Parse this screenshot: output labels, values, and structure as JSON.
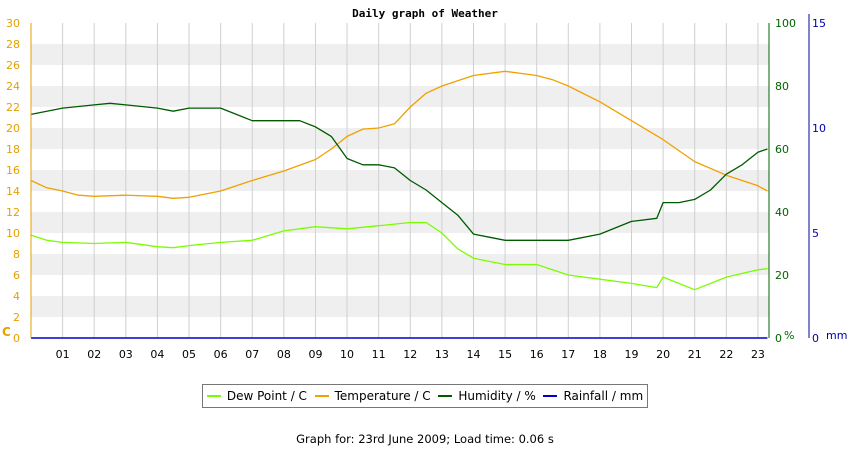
{
  "chart_data": {
    "type": "line",
    "title": "Daily graph of Weather",
    "x_tick_labels": [
      "01",
      "02",
      "03",
      "04",
      "05",
      "06",
      "07",
      "08",
      "09",
      "10",
      "11",
      "12",
      "13",
      "14",
      "15",
      "16",
      "17",
      "18",
      "19",
      "20",
      "21",
      "22",
      "23"
    ],
    "left_axis": {
      "unit_label": "C",
      "ylim": [
        0,
        30
      ],
      "tick_labels": [
        "0",
        "2",
        "4",
        "6",
        "8",
        "10",
        "12",
        "14",
        "16",
        "18",
        "20",
        "22",
        "24",
        "26",
        "28",
        "30"
      ],
      "color": "#e5a000"
    },
    "right_axis_1": {
      "unit_label": "%",
      "ylim": [
        0,
        100
      ],
      "tick_labels": [
        "0",
        "20",
        "40",
        "60",
        "80",
        "100"
      ],
      "color": "#006400"
    },
    "right_axis_2": {
      "unit_label": "mm",
      "ylim": [
        0,
        15
      ],
      "tick_labels": [
        "0",
        "5",
        "10",
        "15"
      ],
      "color": "#0000aa"
    },
    "grid": true,
    "legend_placement": "bottom",
    "series": [
      {
        "name": "Dew Point / C",
        "axis": "left",
        "color": "#7cfc00",
        "x": [
          0,
          0.5,
          1,
          2,
          3,
          4,
          4.5,
          5,
          6,
          7,
          8,
          9,
          10,
          11,
          12,
          12.5,
          13,
          13.5,
          14,
          15,
          16,
          16.5,
          17,
          18,
          19,
          19.8,
          20,
          21,
          22,
          23,
          23.3
        ],
        "y": [
          9.8,
          9.3,
          9.1,
          9.0,
          9.1,
          8.7,
          8.6,
          8.8,
          9.1,
          9.3,
          10.2,
          10.6,
          10.4,
          10.7,
          11.0,
          11.0,
          10.0,
          8.5,
          7.6,
          7.0,
          7.0,
          6.5,
          6.0,
          5.6,
          5.2,
          4.8,
          5.8,
          4.6,
          5.8,
          6.5,
          6.6
        ]
      },
      {
        "name": "Temperature / C",
        "axis": "left",
        "color": "#f0a000",
        "x": [
          0,
          0.5,
          1,
          1.5,
          2,
          3,
          4,
          4.5,
          5,
          6,
          7,
          8,
          9,
          9.5,
          10,
          10.5,
          11,
          11.5,
          12,
          12.5,
          13,
          14,
          15,
          15.5,
          16,
          16.5,
          17,
          18,
          19,
          20,
          21,
          22,
          23,
          23.3
        ],
        "y": [
          15.0,
          14.3,
          14.0,
          13.6,
          13.5,
          13.6,
          13.5,
          13.3,
          13.4,
          14.0,
          15.0,
          15.9,
          17.0,
          18.0,
          19.2,
          19.9,
          20.0,
          20.4,
          22.0,
          23.3,
          24.0,
          25.0,
          25.4,
          25.2,
          25.0,
          24.6,
          24.0,
          22.5,
          20.7,
          18.9,
          16.8,
          15.5,
          14.5,
          14.0
        ]
      },
      {
        "name": "Humidity / %",
        "axis": "right_axis_1",
        "color": "#005a00",
        "x": [
          0,
          1,
          2,
          2.5,
          3,
          4,
          4.5,
          5,
          6,
          6.5,
          7,
          7.5,
          8,
          8.5,
          9,
          9.5,
          10,
          10.5,
          11,
          11.5,
          12,
          12.5,
          13,
          13.5,
          14,
          14.5,
          15,
          16,
          17,
          18,
          19,
          19.8,
          20,
          20.5,
          21,
          21.5,
          22,
          22.5,
          23,
          23.3
        ],
        "y": [
          71,
          73,
          74,
          74.5,
          74,
          73,
          72,
          73,
          73,
          71,
          69,
          69,
          69,
          69,
          67,
          64,
          57,
          55,
          55,
          54,
          50,
          47,
          43,
          39,
          33,
          32,
          31,
          31,
          31,
          33,
          37,
          38,
          43,
          43,
          44,
          47,
          52,
          55,
          59,
          60
        ]
      },
      {
        "name": "Rainfall / mm",
        "axis": "right_axis_2",
        "color": "#0000cc",
        "x": [
          0,
          23.3
        ],
        "y": [
          0,
          0
        ]
      }
    ]
  },
  "footer": "Graph for: 23rd June 2009; Load time: 0.06 s"
}
